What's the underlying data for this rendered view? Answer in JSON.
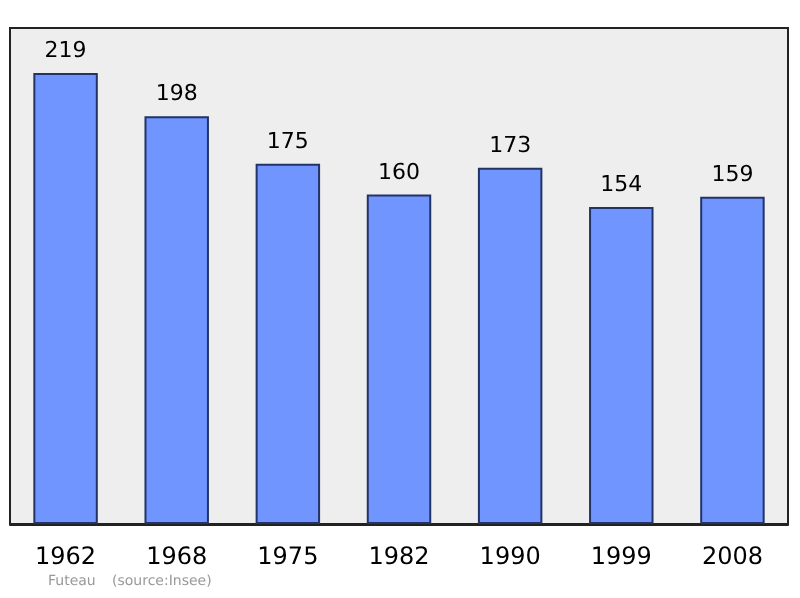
{
  "chart_data": {
    "type": "bar",
    "categories": [
      "1962",
      "1968",
      "1975",
      "1982",
      "1990",
      "1999",
      "2008"
    ],
    "values": [
      219,
      198,
      175,
      160,
      173,
      154,
      159
    ],
    "color": "#7095ff",
    "data_labels": true,
    "annotations": [
      "Futeau",
      "(source:Insee)"
    ]
  }
}
